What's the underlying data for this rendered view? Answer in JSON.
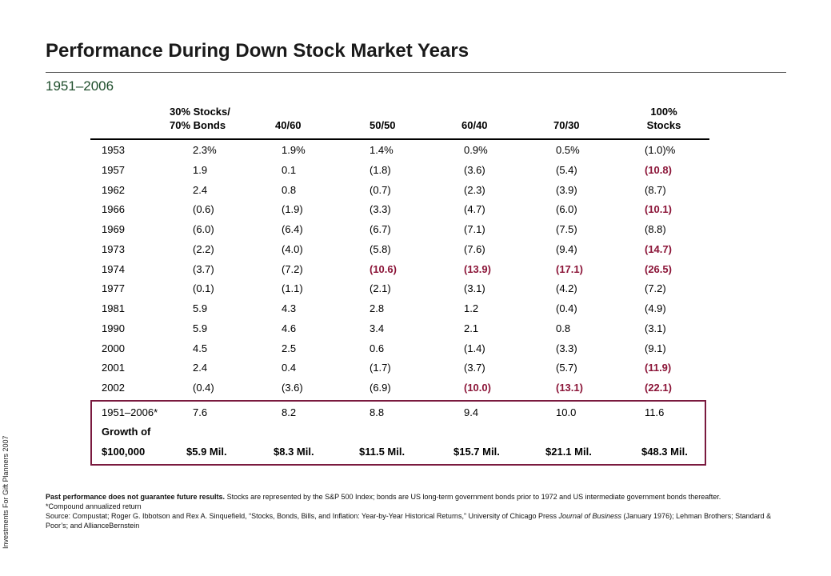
{
  "title": "Performance During Down Stock Market Years",
  "subtitle": "1951–2006",
  "side_label": "Investments For Gift Planners 2007",
  "highlight_color": "#8b1538",
  "headers": {
    "c1_line1": "30% Stocks/",
    "c1_line2": "70% Bonds",
    "c2": "40/60",
    "c3": "50/50",
    "c4": "60/40",
    "c5": "70/30",
    "c6_line1": "100%",
    "c6_line2": "Stocks"
  },
  "rows": [
    {
      "year": "1953",
      "vals": [
        "2.3%",
        "1.9%",
        "1.4%",
        "0.9%",
        "0.5%",
        "(1.0)%"
      ],
      "hl": [
        false,
        false,
        false,
        false,
        false,
        false
      ]
    },
    {
      "year": "1957",
      "vals": [
        "1.9",
        "0.1",
        "(1.8)",
        "(3.6)",
        "(5.4)",
        "(10.8)"
      ],
      "hl": [
        false,
        false,
        false,
        false,
        false,
        true
      ]
    },
    {
      "year": "1962",
      "vals": [
        "2.4",
        "0.8",
        "(0.7)",
        "(2.3)",
        "(3.9)",
        "(8.7)"
      ],
      "hl": [
        false,
        false,
        false,
        false,
        false,
        false
      ]
    },
    {
      "year": "1966",
      "vals": [
        "(0.6)",
        "(1.9)",
        "(3.3)",
        "(4.7)",
        "(6.0)",
        "(10.1)"
      ],
      "hl": [
        false,
        false,
        false,
        false,
        false,
        true
      ]
    },
    {
      "year": "1969",
      "vals": [
        "(6.0)",
        "(6.4)",
        "(6.7)",
        "(7.1)",
        "(7.5)",
        "(8.8)"
      ],
      "hl": [
        false,
        false,
        false,
        false,
        false,
        false
      ]
    },
    {
      "year": "1973",
      "vals": [
        "(2.2)",
        "(4.0)",
        "(5.8)",
        "(7.6)",
        "(9.4)",
        "(14.7)"
      ],
      "hl": [
        false,
        false,
        false,
        false,
        false,
        true
      ]
    },
    {
      "year": "1974",
      "vals": [
        "(3.7)",
        "(7.2)",
        "(10.6)",
        "(13.9)",
        "(17.1)",
        "(26.5)"
      ],
      "hl": [
        false,
        false,
        true,
        true,
        true,
        true
      ]
    },
    {
      "year": "1977",
      "vals": [
        "(0.1)",
        "(1.1)",
        "(2.1)",
        "(3.1)",
        "(4.2)",
        "(7.2)"
      ],
      "hl": [
        false,
        false,
        false,
        false,
        false,
        false
      ]
    },
    {
      "year": "1981",
      "vals": [
        "5.9",
        "4.3",
        "2.8",
        "1.2",
        "(0.4)",
        "(4.9)"
      ],
      "hl": [
        false,
        false,
        false,
        false,
        false,
        false
      ]
    },
    {
      "year": "1990",
      "vals": [
        "5.9",
        "4.6",
        "3.4",
        "2.1",
        "0.8",
        "(3.1)"
      ],
      "hl": [
        false,
        false,
        false,
        false,
        false,
        false
      ]
    },
    {
      "year": "2000",
      "vals": [
        "4.5",
        "2.5",
        "0.6",
        "(1.4)",
        "(3.3)",
        "(9.1)"
      ],
      "hl": [
        false,
        false,
        false,
        false,
        false,
        false
      ]
    },
    {
      "year": "2001",
      "vals": [
        "2.4",
        "0.4",
        "(1.7)",
        "(3.7)",
        "(5.7)",
        "(11.9)"
      ],
      "hl": [
        false,
        false,
        false,
        false,
        false,
        true
      ]
    },
    {
      "year": "2002",
      "vals": [
        "(0.4)",
        "(3.6)",
        "(6.9)",
        "(10.0)",
        "(13.1)",
        "(22.1)"
      ],
      "hl": [
        false,
        false,
        false,
        true,
        true,
        true
      ]
    }
  ],
  "summary": {
    "period_label": "1951–2006*",
    "vals": [
      "7.6",
      "8.2",
      "8.8",
      "9.4",
      "10.0",
      "11.6"
    ],
    "growth_label_line1": "Growth of",
    "growth_label_line2": "$100,000",
    "growth_vals": [
      "$5.9 Mil.",
      "$8.3 Mil.",
      "$11.5 Mil.",
      "$15.7 Mil.",
      "$21.1 Mil.",
      "$48.3 Mil."
    ]
  },
  "footnotes": {
    "disclaimer_bold": "Past performance does not guarantee future results.",
    "disclaimer_rest": " Stocks are represented by the S&P 500 Index; bonds are US long-term government bonds prior to 1972 and US intermediate government bonds thereafter.",
    "asterisk_note": "*Compound annualized return",
    "source_pre": "Source: Compustat; Roger G. Ibbotson and Rex A. Sinquefield, “Stocks, Bonds, Bills, and Inflation: Year-by-Year Historical Returns,” University of Chicago Press ",
    "source_italic": "Journal of Business",
    "source_post": " (January 1976); Lehman Brothers; Standard & Poor’s; and AllianceBernstein"
  }
}
